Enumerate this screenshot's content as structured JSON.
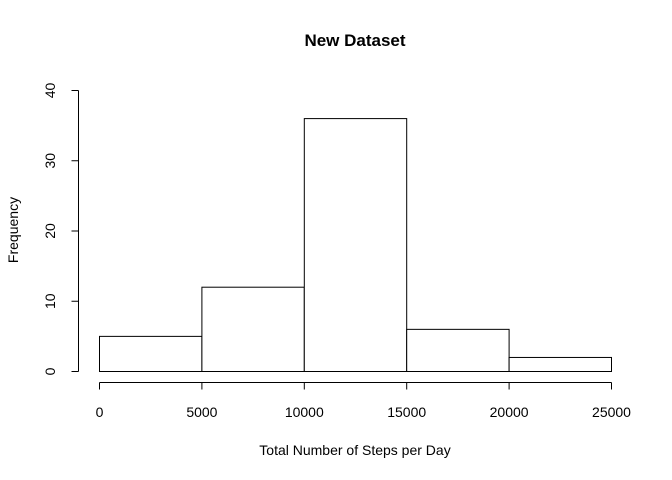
{
  "chart_data": {
    "type": "bar",
    "title": "New Dataset",
    "xlabel": "Total Number of Steps per Day",
    "ylabel": "Frequency",
    "bins": [
      {
        "start": 0,
        "end": 5000,
        "count": 5
      },
      {
        "start": 5000,
        "end": 10000,
        "count": 12
      },
      {
        "start": 10000,
        "end": 15000,
        "count": 36
      },
      {
        "start": 15000,
        "end": 20000,
        "count": 6
      },
      {
        "start": 20000,
        "end": 25000,
        "count": 2
      }
    ],
    "xticks": [
      "0",
      "5000",
      "10000",
      "15000",
      "20000",
      "25000"
    ],
    "yticks": [
      "0",
      "10",
      "20",
      "30",
      "40"
    ],
    "xlim": [
      0,
      25000
    ],
    "ylim": [
      0,
      40
    ],
    "grid": false,
    "legend": "none"
  }
}
